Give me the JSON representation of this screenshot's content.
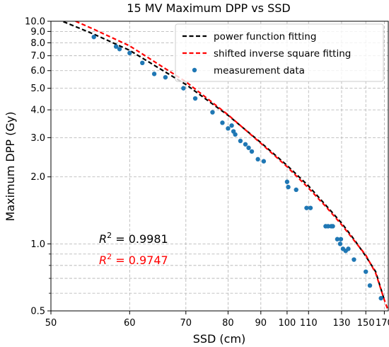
{
  "chart_data": {
    "type": "scatter",
    "title": "15 MV Maximum DPP vs SSD",
    "xlabel": "SSD (cm)",
    "ylabel": "Maximum DPP (Gy)",
    "xscale": "reciprocal",
    "yscale": "log",
    "xlim": [
      50,
      175
    ],
    "ylim": [
      0.5,
      10.0
    ],
    "x_ticks": [
      50,
      60,
      70,
      80,
      90,
      100,
      110,
      130,
      150,
      170
    ],
    "y_ticks": [
      0.5,
      1.0,
      2.0,
      3.0,
      4.0,
      5.0,
      6.0,
      7.0,
      8.0,
      9.0,
      10.0
    ],
    "y_tick_labels": [
      "0.5",
      "1.0",
      "2.0",
      "3.0",
      "4.0",
      "5.0",
      "6.0",
      "7.0",
      "8.0",
      "9.0",
      "10.0"
    ],
    "grid": true,
    "legend_position": "top-right",
    "colors": {
      "power_fit": "#000000",
      "inverse_square_fit": "#ff0000",
      "measurement": "#1f77b4"
    },
    "series": [
      {
        "name": "power function fitting",
        "style": "dashed-line",
        "color": "#000000",
        "x": [
          50,
          55,
          60,
          70,
          80,
          90,
          100,
          110,
          120,
          130,
          140,
          150,
          160,
          170
        ],
        "y": [
          10.5,
          8.75,
          7.4,
          5.2,
          3.78,
          2.85,
          2.25,
          1.82,
          1.48,
          1.24,
          1.04,
          0.88,
          0.75,
          0.56
        ]
      },
      {
        "name": "shifted inverse square fitting",
        "style": "dashed-line",
        "color": "#ff0000",
        "x": [
          50,
          55,
          60,
          70,
          80,
          90,
          100,
          110,
          120,
          130,
          140,
          150,
          160,
          170,
          175
        ],
        "y": [
          11.2,
          9.2,
          7.75,
          5.35,
          3.8,
          2.83,
          2.22,
          1.78,
          1.46,
          1.22,
          1.03,
          0.89,
          0.74,
          0.56,
          0.5
        ]
      },
      {
        "name": "measurement data",
        "style": "points",
        "color": "#1f77b4",
        "x": [
          55,
          58,
          58.5,
          60,
          62,
          64,
          66,
          69.5,
          72,
          76,
          78.5,
          80,
          81,
          81.5,
          82,
          83.5,
          85,
          86,
          87,
          89,
          91,
          100,
          100.5,
          104,
          109,
          111,
          119.5,
          121,
          123,
          124,
          127,
          129,
          129.5,
          131,
          133,
          135,
          139.5,
          150,
          154,
          166
        ],
        "y": [
          8.5,
          7.7,
          7.5,
          7.2,
          6.5,
          5.8,
          5.6,
          5.0,
          4.5,
          3.9,
          3.5,
          3.3,
          3.4,
          3.2,
          3.1,
          2.9,
          2.8,
          2.7,
          2.6,
          2.4,
          2.35,
          1.9,
          1.8,
          1.75,
          1.45,
          1.45,
          1.2,
          1.2,
          1.2,
          1.2,
          1.05,
          1.0,
          1.05,
          0.95,
          0.93,
          0.95,
          0.85,
          0.75,
          0.65,
          0.57
        ]
      }
    ],
    "annotations": [
      {
        "text": "R² = 0.9981",
        "color": "#000000",
        "series": "power function fitting"
      },
      {
        "text": "R² = 0.9747",
        "color": "#ff0000",
        "series": "shifted inverse square fitting"
      }
    ]
  }
}
